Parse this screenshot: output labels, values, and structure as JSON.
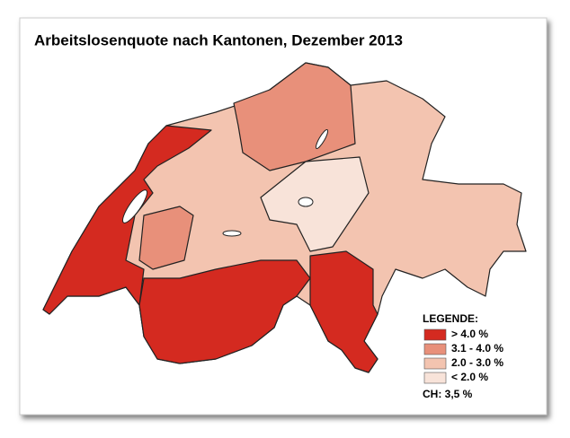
{
  "title": "Arbeitslosenquote nach Kantonen, Dezember 2013",
  "legend": {
    "title": "LEGENDE:",
    "items": [
      {
        "label": "> 4.0 %",
        "color": "#d42a20"
      },
      {
        "label": "3.1 - 4.0 %",
        "color": "#e8907a"
      },
      {
        "label": "2.0 - 3.0 %",
        "color": "#f3c4b0"
      },
      {
        "label": "< 2.0 %",
        "color": "#f8e3d9"
      }
    ],
    "total": "CH: 3,5 %"
  }
}
